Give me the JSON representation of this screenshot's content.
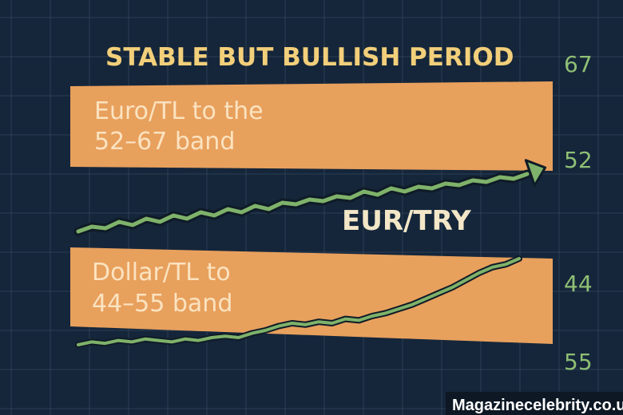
{
  "chart_data": {
    "type": "line",
    "title": "STABLE BUT BULLISH PERIOD",
    "annotations": [
      {
        "id": "euro",
        "lines": [
          "Euro/TL to the",
          "52–67 band"
        ]
      },
      {
        "id": "dollar",
        "lines": [
          "Dollar/TL to",
          "44–55 band"
        ]
      }
    ],
    "series": [
      {
        "name": "",
        "trend": "upper",
        "values": [
          30,
          33,
          32,
          36,
          34,
          38,
          36,
          40,
          38,
          42,
          40,
          44,
          42,
          46,
          44,
          48,
          47,
          50,
          49,
          52,
          51,
          55,
          53,
          57,
          55,
          58,
          57,
          60,
          59,
          62,
          61,
          64,
          63,
          66
        ]
      },
      {
        "name": "EUR/TRY",
        "trend": "lower",
        "values": [
          20,
          22,
          21,
          23,
          22,
          24,
          23,
          22,
          24,
          23,
          25,
          26,
          25,
          28,
          30,
          33,
          35,
          34,
          36,
          35,
          38,
          37,
          40,
          42,
          45,
          48,
          52,
          56,
          60,
          65,
          70,
          74,
          76,
          80
        ]
      }
    ],
    "tick_labels": [
      "67",
      "52",
      "44",
      "55"
    ],
    "grid": true,
    "colors": {
      "background": "#15263a",
      "grid": "#2b3f55",
      "band": "#e8a05d",
      "band_text": "#fbe3c0",
      "title": "#f2cf7a",
      "line": "#7fb26a",
      "line_outline": "#0f1b27",
      "tick": "#8fbf74",
      "series_label_dark": "#f3e7c8"
    },
    "watermark": "Magazinecelebrity.co.uk"
  }
}
